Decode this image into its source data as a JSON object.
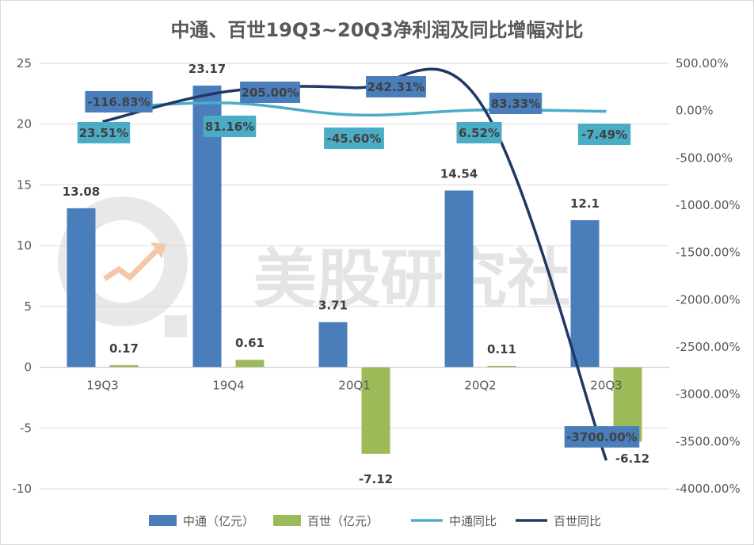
{
  "chart_data": {
    "type": "bar",
    "title": "中通、百世19Q3~20Q3净利润及同比增幅对比",
    "categories": [
      "19Q3",
      "19Q4",
      "20Q1",
      "20Q2",
      "20Q3"
    ],
    "series": [
      {
        "name": "中通（亿元）",
        "kind": "bar",
        "axis": "left",
        "color": "#4a7ebb",
        "values": [
          13.08,
          23.17,
          3.71,
          14.54,
          12.1
        ],
        "labels": [
          "13.08",
          "23.17",
          "3.71",
          "14.54",
          "12.1"
        ]
      },
      {
        "name": "百世（亿元）",
        "kind": "bar",
        "axis": "left",
        "color": "#9bbb59",
        "values": [
          0.17,
          0.61,
          -7.12,
          0.11,
          -6.12
        ],
        "labels": [
          "0.17",
          "0.61",
          "-7.12",
          "0.11",
          "-6.12"
        ]
      },
      {
        "name": "中通同比",
        "kind": "line",
        "axis": "right",
        "color": "#4bacc6",
        "label_bg": "#4bacc6",
        "values": [
          23.51,
          81.16,
          -45.6,
          6.52,
          -7.49
        ],
        "labels": [
          "23.51%",
          "81.16%",
          "-45.60%",
          "6.52%",
          "-7.49%"
        ]
      },
      {
        "name": "百世同比",
        "kind": "line",
        "axis": "right",
        "color": "#1f3864",
        "label_bg": "#4a7ebb",
        "values": [
          -116.83,
          205.0,
          242.31,
          83.33,
          -3700.0
        ],
        "labels": [
          "-116.83%",
          "205.00%",
          "242.31%",
          "83.33%",
          "-3700.00%"
        ]
      }
    ],
    "y_left": {
      "min": -10,
      "max": 25,
      "step": 5,
      "ticks": [
        "25",
        "20",
        "15",
        "10",
        "5",
        "0",
        "-5",
        "-10"
      ]
    },
    "y_right": {
      "min": -4000,
      "max": 500,
      "step": 500,
      "ticks": [
        "500.00%",
        "0.00%",
        "-500.00%",
        "-1000.00%",
        "-1500.00%",
        "-2000.00%",
        "-2500.00%",
        "-3000.00%",
        "-3500.00%",
        "-4000.00%"
      ]
    },
    "legend_position": "bottom",
    "gridlines": true
  },
  "watermark": {
    "text": "美股研究社"
  }
}
